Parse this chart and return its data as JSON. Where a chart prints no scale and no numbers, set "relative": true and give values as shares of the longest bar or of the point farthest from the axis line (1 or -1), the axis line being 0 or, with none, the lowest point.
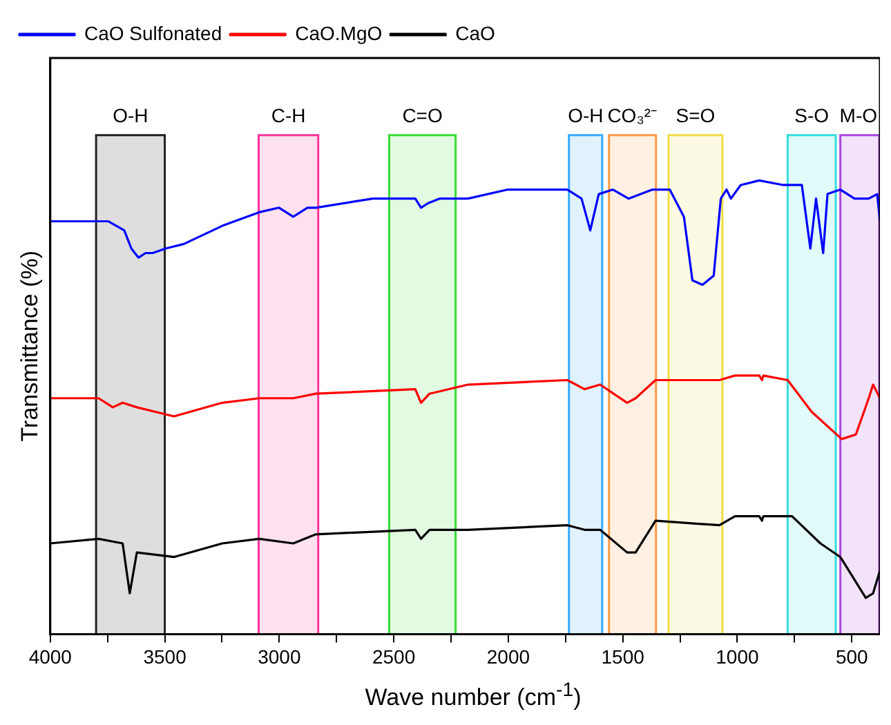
{
  "chart_data": {
    "type": "line",
    "xlabel": "Wave number (cm$^{-1}$)",
    "ylabel": "Transmittance (%)",
    "relative": true,
    "legend": "top left",
    "grid": false,
    "marker": "none",
    "line_style": "solid",
    "xlim": [
      4000,
      377
    ],
    "xticks": [
      4000,
      {
        "value": 3750,
        "label": null
      },
      3500,
      {
        "value": 3250,
        "label": null
      },
      3000,
      {
        "value": 2750,
        "label": null
      },
      2500,
      {
        "value": 2250,
        "label": null
      },
      2000,
      {
        "value": 1750,
        "label": null
      },
      1500,
      {
        "value": 1250,
        "label": null
      },
      1000,
      {
        "value": 750,
        "label": null
      },
      500
    ],
    "series": [
      {
        "name": "CaO Sulfonated",
        "color": "#0000ff",
        "x": [
          4000,
          3789,
          3746,
          3677,
          3646,
          3615,
          3584,
          3553,
          3497,
          3417,
          3249,
          3088,
          3001,
          2939,
          2877,
          2840,
          2592,
          2406,
          2381,
          2350,
          2300,
          2176,
          2002,
          1742,
          1680,
          1642,
          1605,
          1543,
          1475,
          1370,
          1295,
          1233,
          1196,
          1152,
          1103,
          1072,
          1047,
          1028,
          985,
          904,
          799,
          718,
          681,
          656,
          625,
          606,
          550,
          488,
          426,
          389,
          377
        ],
        "values": [
          0.91,
          0.91,
          0.91,
          0.89,
          0.85,
          0.83,
          0.84,
          0.84,
          0.85,
          0.86,
          0.9,
          0.93,
          0.94,
          0.92,
          0.94,
          0.94,
          0.96,
          0.96,
          0.94,
          0.95,
          0.96,
          0.96,
          0.98,
          0.98,
          0.96,
          0.89,
          0.97,
          0.98,
          0.96,
          0.98,
          0.98,
          0.92,
          0.78,
          0.77,
          0.79,
          0.96,
          0.98,
          0.96,
          0.99,
          1,
          0.99,
          0.99,
          0.85,
          0.96,
          0.84,
          0.97,
          0.98,
          0.96,
          0.96,
          0.97,
          0.91
        ]
      },
      {
        "name": "CaO.MgO",
        "color": "#ff0000",
        "x": [
          4000,
          3789,
          3727,
          3684,
          3622,
          3460,
          3249,
          3088,
          2939,
          2840,
          2406,
          2381,
          2344,
          2176,
          1742,
          1667,
          1599,
          1481,
          1444,
          1357,
          1078,
          1010,
          904,
          892,
          886,
          780,
          675,
          544,
          482,
          426,
          407,
          377
        ],
        "values": [
          0.52,
          0.52,
          0.5,
          0.51,
          0.5,
          0.48,
          0.51,
          0.52,
          0.52,
          0.53,
          0.54,
          0.51,
          0.53,
          0.55,
          0.56,
          0.54,
          0.55,
          0.51,
          0.52,
          0.56,
          0.56,
          0.57,
          0.57,
          0.56,
          0.57,
          0.56,
          0.49,
          0.43,
          0.44,
          0.52,
          0.55,
          0.52
        ]
      },
      {
        "name": "CaO",
        "color": "#000000",
        "x": [
          4000,
          3789,
          3684,
          3653,
          3622,
          3460,
          3249,
          3088,
          2939,
          2840,
          2406,
          2381,
          2344,
          2176,
          1742,
          1667,
          1599,
          1481,
          1444,
          1357,
          1078,
          1010,
          904,
          892,
          886,
          761,
          637,
          550,
          439,
          407,
          377
        ],
        "values": [
          0.2,
          0.21,
          0.2,
          0.09,
          0.18,
          0.17,
          0.2,
          0.21,
          0.2,
          0.22,
          0.23,
          0.21,
          0.23,
          0.23,
          0.24,
          0.23,
          0.23,
          0.18,
          0.18,
          0.25,
          0.24,
          0.26,
          0.26,
          0.25,
          0.26,
          0.26,
          0.2,
          0.17,
          0.08,
          0.09,
          0.14
        ]
      }
    ],
    "bands": [
      {
        "axis": "x",
        "from": 3800,
        "to": 3500,
        "label": "O-H",
        "color": "#222222"
      },
      {
        "axis": "x",
        "from": 3090,
        "to": 2830,
        "label": "C-H",
        "color": "#ff3399"
      },
      {
        "axis": "x",
        "from": 2520,
        "to": 2230,
        "label": "C=O",
        "color": "#33dd33"
      },
      {
        "axis": "x",
        "from": 1735,
        "to": 1590,
        "label": "O-H",
        "color": "#33aaff"
      },
      {
        "axis": "x",
        "from": 1560,
        "to": 1355,
        "label": "CO₃²⁻",
        "color": "#ff9944"
      },
      {
        "axis": "x",
        "from": 1300,
        "to": 1065,
        "label": "S=O",
        "color": "#eedd44"
      },
      {
        "axis": "x",
        "from": 780,
        "to": 570,
        "label": "S-O",
        "color": "#33dddd"
      },
      {
        "axis": "x",
        "from": 550,
        "to": 380,
        "label": "M-O",
        "color": "#aa44dd"
      }
    ]
  }
}
